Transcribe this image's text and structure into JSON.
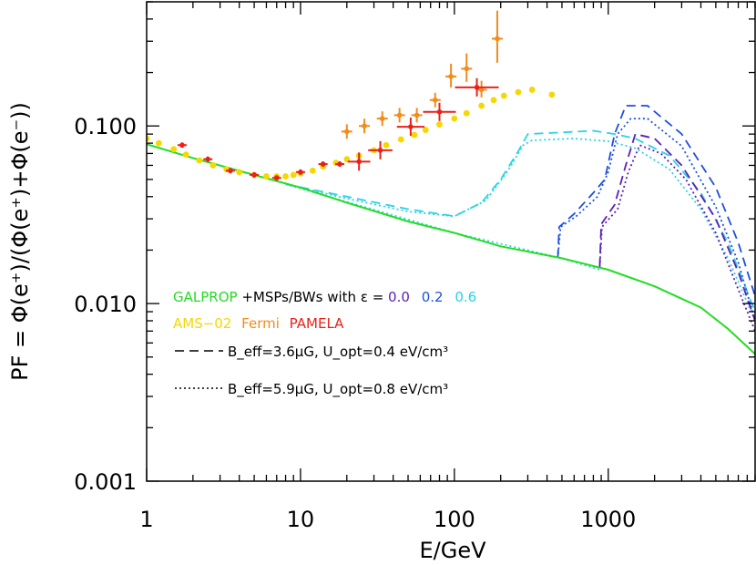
{
  "chart_data": {
    "type": "line",
    "xscale": "log",
    "yscale": "log",
    "xlim": [
      1,
      9000
    ],
    "ylim": [
      0.001,
      0.5
    ],
    "xlabel": "E/GeV",
    "ylabel": "PF = Φ(e⁺)/(Φ(e⁺)+Φ(e⁻))",
    "xticks": [
      {
        "value": 1,
        "label": "1"
      },
      {
        "value": 10,
        "label": "10"
      },
      {
        "value": 100,
        "label": "100"
      },
      {
        "value": 1000,
        "label": "1000"
      }
    ],
    "yticks": [
      {
        "value": 0.001,
        "label": "0.001"
      },
      {
        "value": 0.01,
        "label": "0.010"
      },
      {
        "value": 0.1,
        "label": "0.100"
      }
    ],
    "legend": {
      "line1": {
        "prefix": "GALPROP",
        "middle": "+MSPs/BWs with",
        "eps_symbol": "ε",
        "eq": " = ",
        "eps_values": [
          "0.0",
          "0.2",
          "0.6"
        ]
      },
      "line2": [
        "AMS−02",
        "Fermi",
        "PAMELA"
      ],
      "line3": {
        "text": "B_eff=3.6μG, U_opt=0.4 eV/cm³"
      },
      "line4": {
        "text": "B_eff=5.9μG, U_opt=0.8 eV/cm³"
      }
    },
    "colors": {
      "galprop": "#22dd22",
      "ams02": "#f5d800",
      "fermi": "#f28c1c",
      "pamela": "#e8221a",
      "eps00": "#5b1fb5",
      "eps02": "#1f4fe0",
      "eps06": "#29d3e6"
    },
    "series": [
      {
        "name": "GALPROP",
        "style": "solid",
        "color_key": "galprop",
        "points": [
          [
            1,
            0.079
          ],
          [
            2,
            0.066
          ],
          [
            5,
            0.053
          ],
          [
            10,
            0.045
          ],
          [
            20,
            0.037
          ],
          [
            50,
            0.029
          ],
          [
            100,
            0.025
          ],
          [
            200,
            0.021
          ],
          [
            500,
            0.018
          ],
          [
            1000,
            0.0155
          ],
          [
            2000,
            0.0125
          ],
          [
            4000,
            0.0095
          ],
          [
            6000,
            0.0072
          ],
          [
            9000,
            0.0052
          ]
        ]
      },
      {
        "name": "AMS-02",
        "type": "points",
        "color_key": "ams02",
        "points": [
          [
            1,
            0.085
          ],
          [
            1.2,
            0.08
          ],
          [
            1.5,
            0.074
          ],
          [
            1.8,
            0.069
          ],
          [
            2.2,
            0.064
          ],
          [
            2.7,
            0.06
          ],
          [
            3.3,
            0.057
          ],
          [
            4,
            0.055
          ],
          [
            5,
            0.053
          ],
          [
            6,
            0.052
          ],
          [
            7,
            0.052
          ],
          [
            8,
            0.052
          ],
          [
            9,
            0.053
          ],
          [
            10,
            0.054
          ],
          [
            12,
            0.056
          ],
          [
            14,
            0.059
          ],
          [
            17,
            0.062
          ],
          [
            20,
            0.065
          ],
          [
            24,
            0.068
          ],
          [
            30,
            0.073
          ],
          [
            36,
            0.078
          ],
          [
            45,
            0.084
          ],
          [
            55,
            0.089
          ],
          [
            65,
            0.095
          ],
          [
            80,
            0.102
          ],
          [
            100,
            0.11
          ],
          [
            120,
            0.118
          ],
          [
            150,
            0.13
          ],
          [
            180,
            0.14
          ],
          [
            210,
            0.148
          ],
          [
            260,
            0.155
          ],
          [
            320,
            0.16
          ],
          [
            430,
            0.15
          ]
        ]
      },
      {
        "name": "Fermi",
        "type": "points",
        "color_key": "fermi",
        "points": [
          [
            20,
            0.093
          ],
          [
            26,
            0.1
          ],
          [
            34,
            0.11
          ],
          [
            44,
            0.115
          ],
          [
            57,
            0.115
          ],
          [
            75,
            0.14
          ],
          [
            95,
            0.19
          ],
          [
            120,
            0.21
          ],
          [
            150,
            0.16
          ],
          [
            190,
            0.31
          ]
        ]
      },
      {
        "name": "PAMELA",
        "type": "points",
        "color_key": "pamela",
        "points": [
          [
            1.7,
            0.078
          ],
          [
            2.5,
            0.065
          ],
          [
            3.5,
            0.056
          ],
          [
            5,
            0.053
          ],
          [
            7,
            0.051
          ],
          [
            10,
            0.055
          ],
          [
            14,
            0.061
          ],
          [
            18,
            0.061
          ],
          [
            24,
            0.063
          ],
          [
            33,
            0.073
          ],
          [
            52,
            0.099
          ],
          [
            80,
            0.12
          ],
          [
            140,
            0.165
          ]
        ]
      }
    ]
  }
}
